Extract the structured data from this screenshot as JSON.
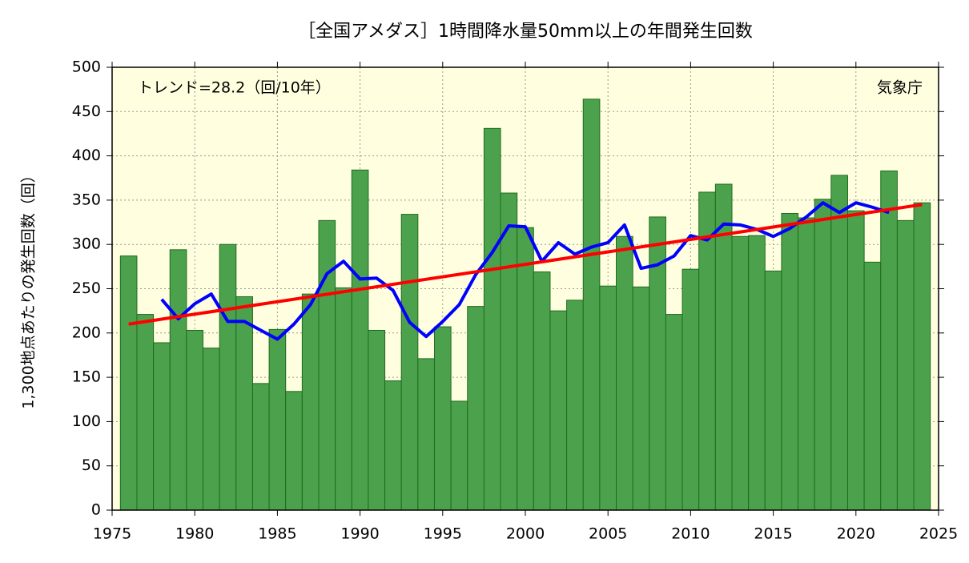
{
  "chart_data": {
    "type": "bar",
    "title": "［全国アメダス］1時間降水量50mm以上の年間発生回数",
    "y_label": "1,300地点あたりの発生回数（回）",
    "annotations": [
      "トレンド=28.2（回/10年）",
      "気象庁"
    ],
    "xlim": [
      1975,
      2025
    ],
    "xticks": [
      1975,
      1980,
      1985,
      1990,
      1995,
      2000,
      2005,
      2010,
      2015,
      2020,
      2025
    ],
    "ylim": [
      0,
      500
    ],
    "yticks": [
      0,
      50,
      100,
      150,
      200,
      250,
      300,
      350,
      400,
      450,
      500
    ],
    "grid": true,
    "background": "#ffffe0",
    "series": [
      {
        "type": "bar",
        "color": "#4ca24c",
        "x": [
          1976,
          1977,
          1978,
          1979,
          1980,
          1981,
          1982,
          1983,
          1984,
          1985,
          1986,
          1987,
          1988,
          1989,
          1990,
          1991,
          1992,
          1993,
          1994,
          1995,
          1996,
          1997,
          1998,
          1999,
          2000,
          2001,
          2002,
          2003,
          2004,
          2005,
          2006,
          2007,
          2008,
          2009,
          2010,
          2011,
          2012,
          2013,
          2014,
          2015,
          2016,
          2017,
          2018,
          2019,
          2020,
          2021,
          2022,
          2023,
          2024
        ],
        "values": [
          287,
          221,
          189,
          294,
          203,
          183,
          300,
          241,
          143,
          204,
          134,
          244,
          327,
          251,
          384,
          203,
          146,
          334,
          171,
          207,
          123,
          230,
          431,
          358,
          319,
          269,
          225,
          237,
          464,
          253,
          309,
          252,
          331,
          221,
          272,
          359,
          368,
          309,
          310,
          270,
          335,
          330,
          351,
          378,
          338,
          280,
          383,
          327,
          347
        ]
      },
      {
        "type": "line",
        "color": "#0000ff",
        "x": [
          1978,
          1979,
          1980,
          1981,
          1982,
          1983,
          1984,
          1985,
          1986,
          1987,
          1988,
          1989,
          1990,
          1991,
          1992,
          1993,
          1994,
          1995,
          1996,
          1997,
          1998,
          1999,
          2000,
          2001,
          2002,
          2003,
          2004,
          2005,
          2006,
          2007,
          2008,
          2009,
          2010,
          2011,
          2012,
          2013,
          2014,
          2015,
          2016,
          2017,
          2018,
          2019,
          2020,
          2021,
          2022
        ],
        "values": [
          238,
          216,
          233,
          244,
          213,
          213,
          203,
          193,
          210,
          232,
          267,
          281,
          261,
          262,
          248,
          212,
          196,
          213,
          232,
          266,
          291,
          321,
          320,
          281,
          302,
          289,
          297,
          302,
          322,
          273,
          277,
          287,
          310,
          305,
          323,
          322,
          317,
          309,
          318,
          331,
          347,
          336,
          347,
          342,
          336
        ]
      },
      {
        "type": "line",
        "color": "#ff0000",
        "x": [
          1976,
          2024
        ],
        "values": [
          210,
          345
        ]
      }
    ]
  }
}
